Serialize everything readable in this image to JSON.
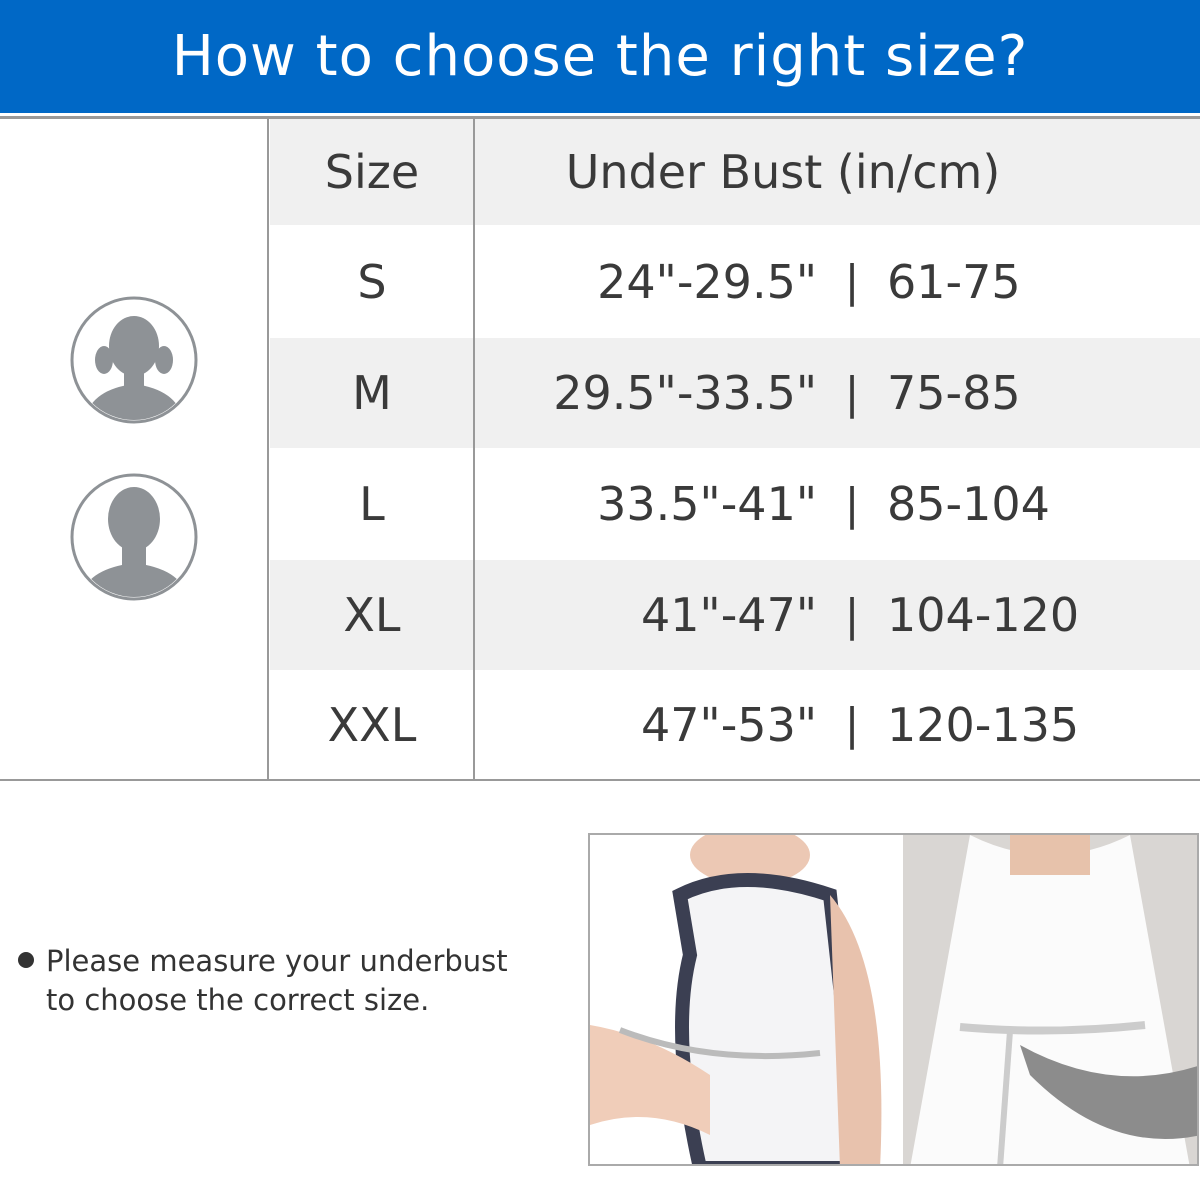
{
  "title": "How to choose the right size?",
  "colors": {
    "header_bg": "#0068c6",
    "row_alt": "#f0f0f0",
    "avatar": "#8e9296"
  },
  "table": {
    "headers": {
      "size": "Size",
      "measure": "Under Bust (in/cm)"
    },
    "separator": "|",
    "rows": [
      {
        "size": "S",
        "inches": "24\"-29.5\"",
        "cm": "61-75"
      },
      {
        "size": "M",
        "inches": "29.5\"-33.5\"",
        "cm": "75-85"
      },
      {
        "size": "L",
        "inches": "33.5\"-41\"",
        "cm": "85-104"
      },
      {
        "size": "XL",
        "inches": "41\"-47\"",
        "cm": "104-120"
      },
      {
        "size": "XXL",
        "inches": "47\"-53\"",
        "cm": "120-135"
      }
    ]
  },
  "icons": [
    "female-avatar-icon",
    "male-avatar-icon"
  ],
  "note": {
    "line1": "Please measure your underbust",
    "line2": "to choose the correct size."
  }
}
